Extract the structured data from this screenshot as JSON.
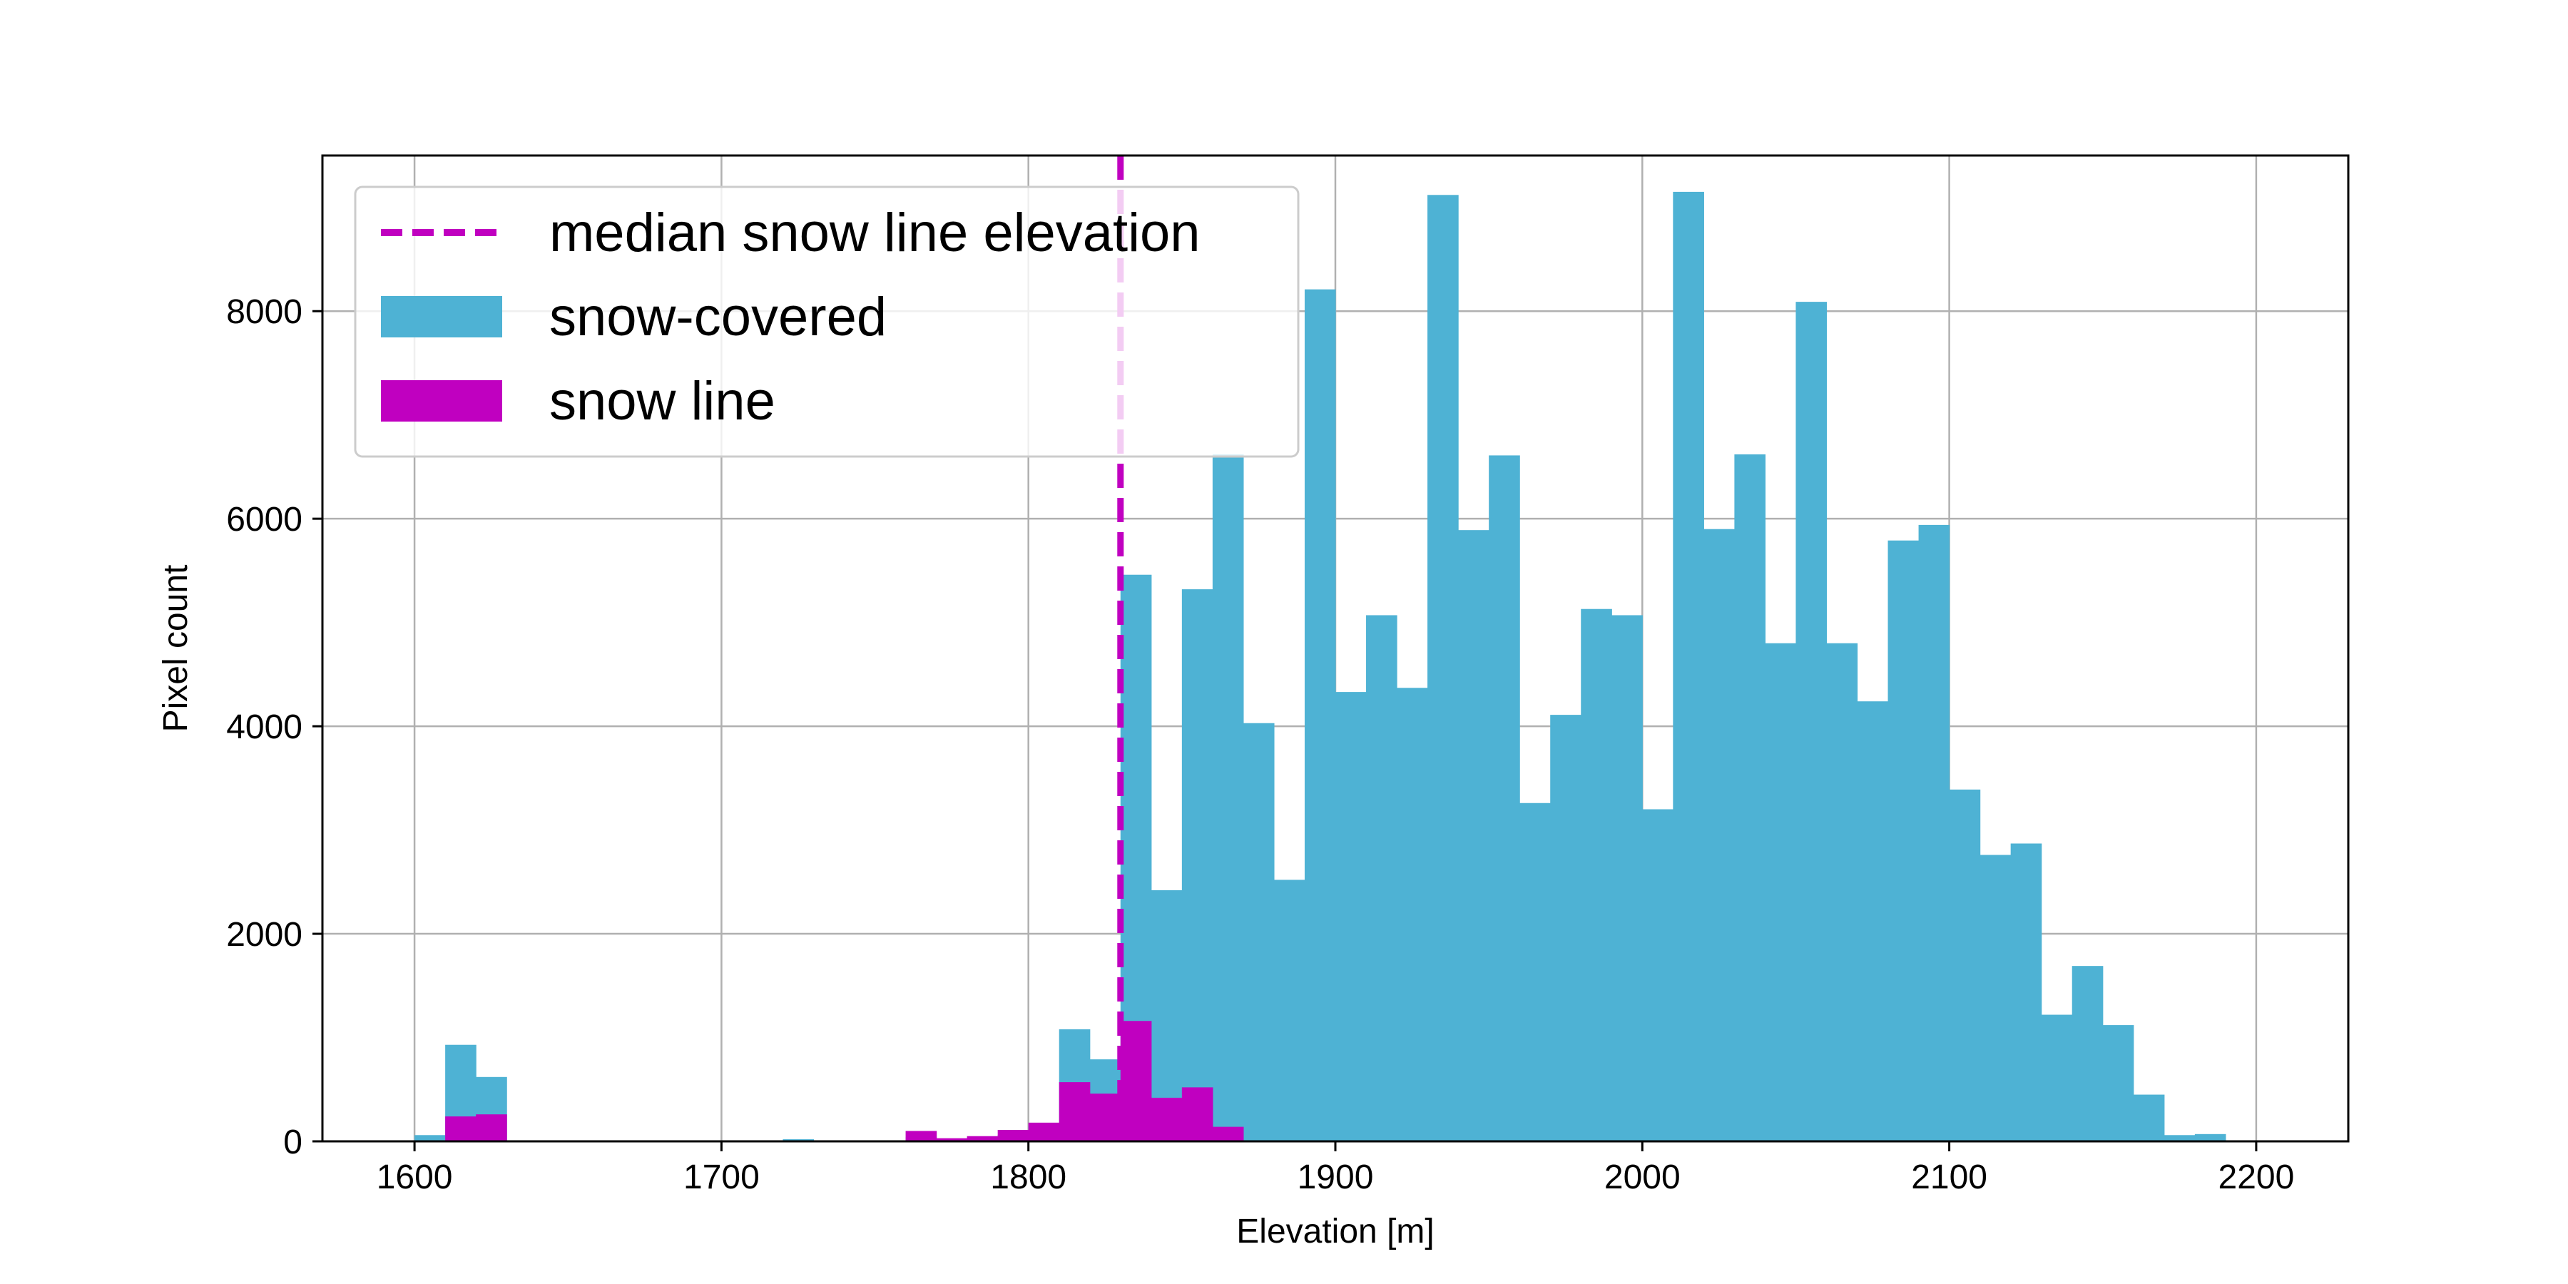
{
  "chart_data": {
    "type": "histogram",
    "xlabel": "Elevation [m]",
    "ylabel": "Pixel count",
    "xlim": [
      1570,
      2230
    ],
    "ylim": [
      0,
      9500
    ],
    "xticks": [
      1600,
      1700,
      1800,
      1900,
      2000,
      2100,
      2200
    ],
    "yticks": [
      0,
      2000,
      4000,
      6000,
      8000
    ],
    "grid": true,
    "legend_position": "top-left",
    "bin_width": 10,
    "bins_start": [
      1600,
      1610,
      1620,
      1630,
      1640,
      1650,
      1660,
      1670,
      1680,
      1690,
      1700,
      1710,
      1720,
      1730,
      1740,
      1750,
      1760,
      1770,
      1780,
      1790,
      1800,
      1810,
      1820,
      1830,
      1840,
      1850,
      1860,
      1870,
      1880,
      1890,
      1900,
      1910,
      1920,
      1930,
      1940,
      1950,
      1960,
      1970,
      1980,
      1990,
      2000,
      2010,
      2020,
      2030,
      2040,
      2050,
      2060,
      2070,
      2080,
      2090,
      2100,
      2110,
      2120,
      2130,
      2140,
      2150,
      2160,
      2170,
      2180,
      2190
    ],
    "series": [
      {
        "name": "snow-covered",
        "color": "#4eb2d4",
        "values": [
          60,
          930,
          620,
          10,
          0,
          0,
          0,
          0,
          0,
          0,
          0,
          0,
          20,
          0,
          0,
          0,
          40,
          20,
          30,
          60,
          150,
          1080,
          790,
          5460,
          2420,
          5320,
          6620,
          4030,
          2520,
          8210,
          4330,
          5070,
          4370,
          9120,
          5890,
          6610,
          3260,
          4110,
          5130,
          5070,
          3200,
          9150,
          5900,
          6620,
          4800,
          8090,
          4800,
          4240,
          5790,
          5940,
          3390,
          2760,
          2870,
          1220,
          1690,
          1120,
          450,
          60,
          70,
          0
        ]
      },
      {
        "name": "snow line",
        "color": "#c000c0",
        "values": [
          0,
          240,
          260,
          0,
          0,
          0,
          0,
          0,
          0,
          0,
          0,
          0,
          0,
          0,
          0,
          0,
          100,
          30,
          50,
          110,
          180,
          570,
          460,
          1160,
          420,
          520,
          140,
          0,
          0,
          0,
          0,
          0,
          0,
          0,
          0,
          0,
          0,
          0,
          0,
          0,
          0,
          0,
          0,
          0,
          0,
          0,
          0,
          0,
          0,
          0,
          0,
          0,
          0,
          0,
          0,
          0,
          0,
          0,
          0,
          0
        ]
      }
    ],
    "reference_lines": [
      {
        "name": "median snow line elevation",
        "orientation": "vertical",
        "x": 1830,
        "color": "#c000c0",
        "style": "dashed"
      }
    ],
    "legend": [
      {
        "label": "median snow line elevation",
        "kind": "line"
      },
      {
        "label": "snow-covered",
        "kind": "patch"
      },
      {
        "label": "snow line",
        "kind": "patch"
      }
    ]
  }
}
